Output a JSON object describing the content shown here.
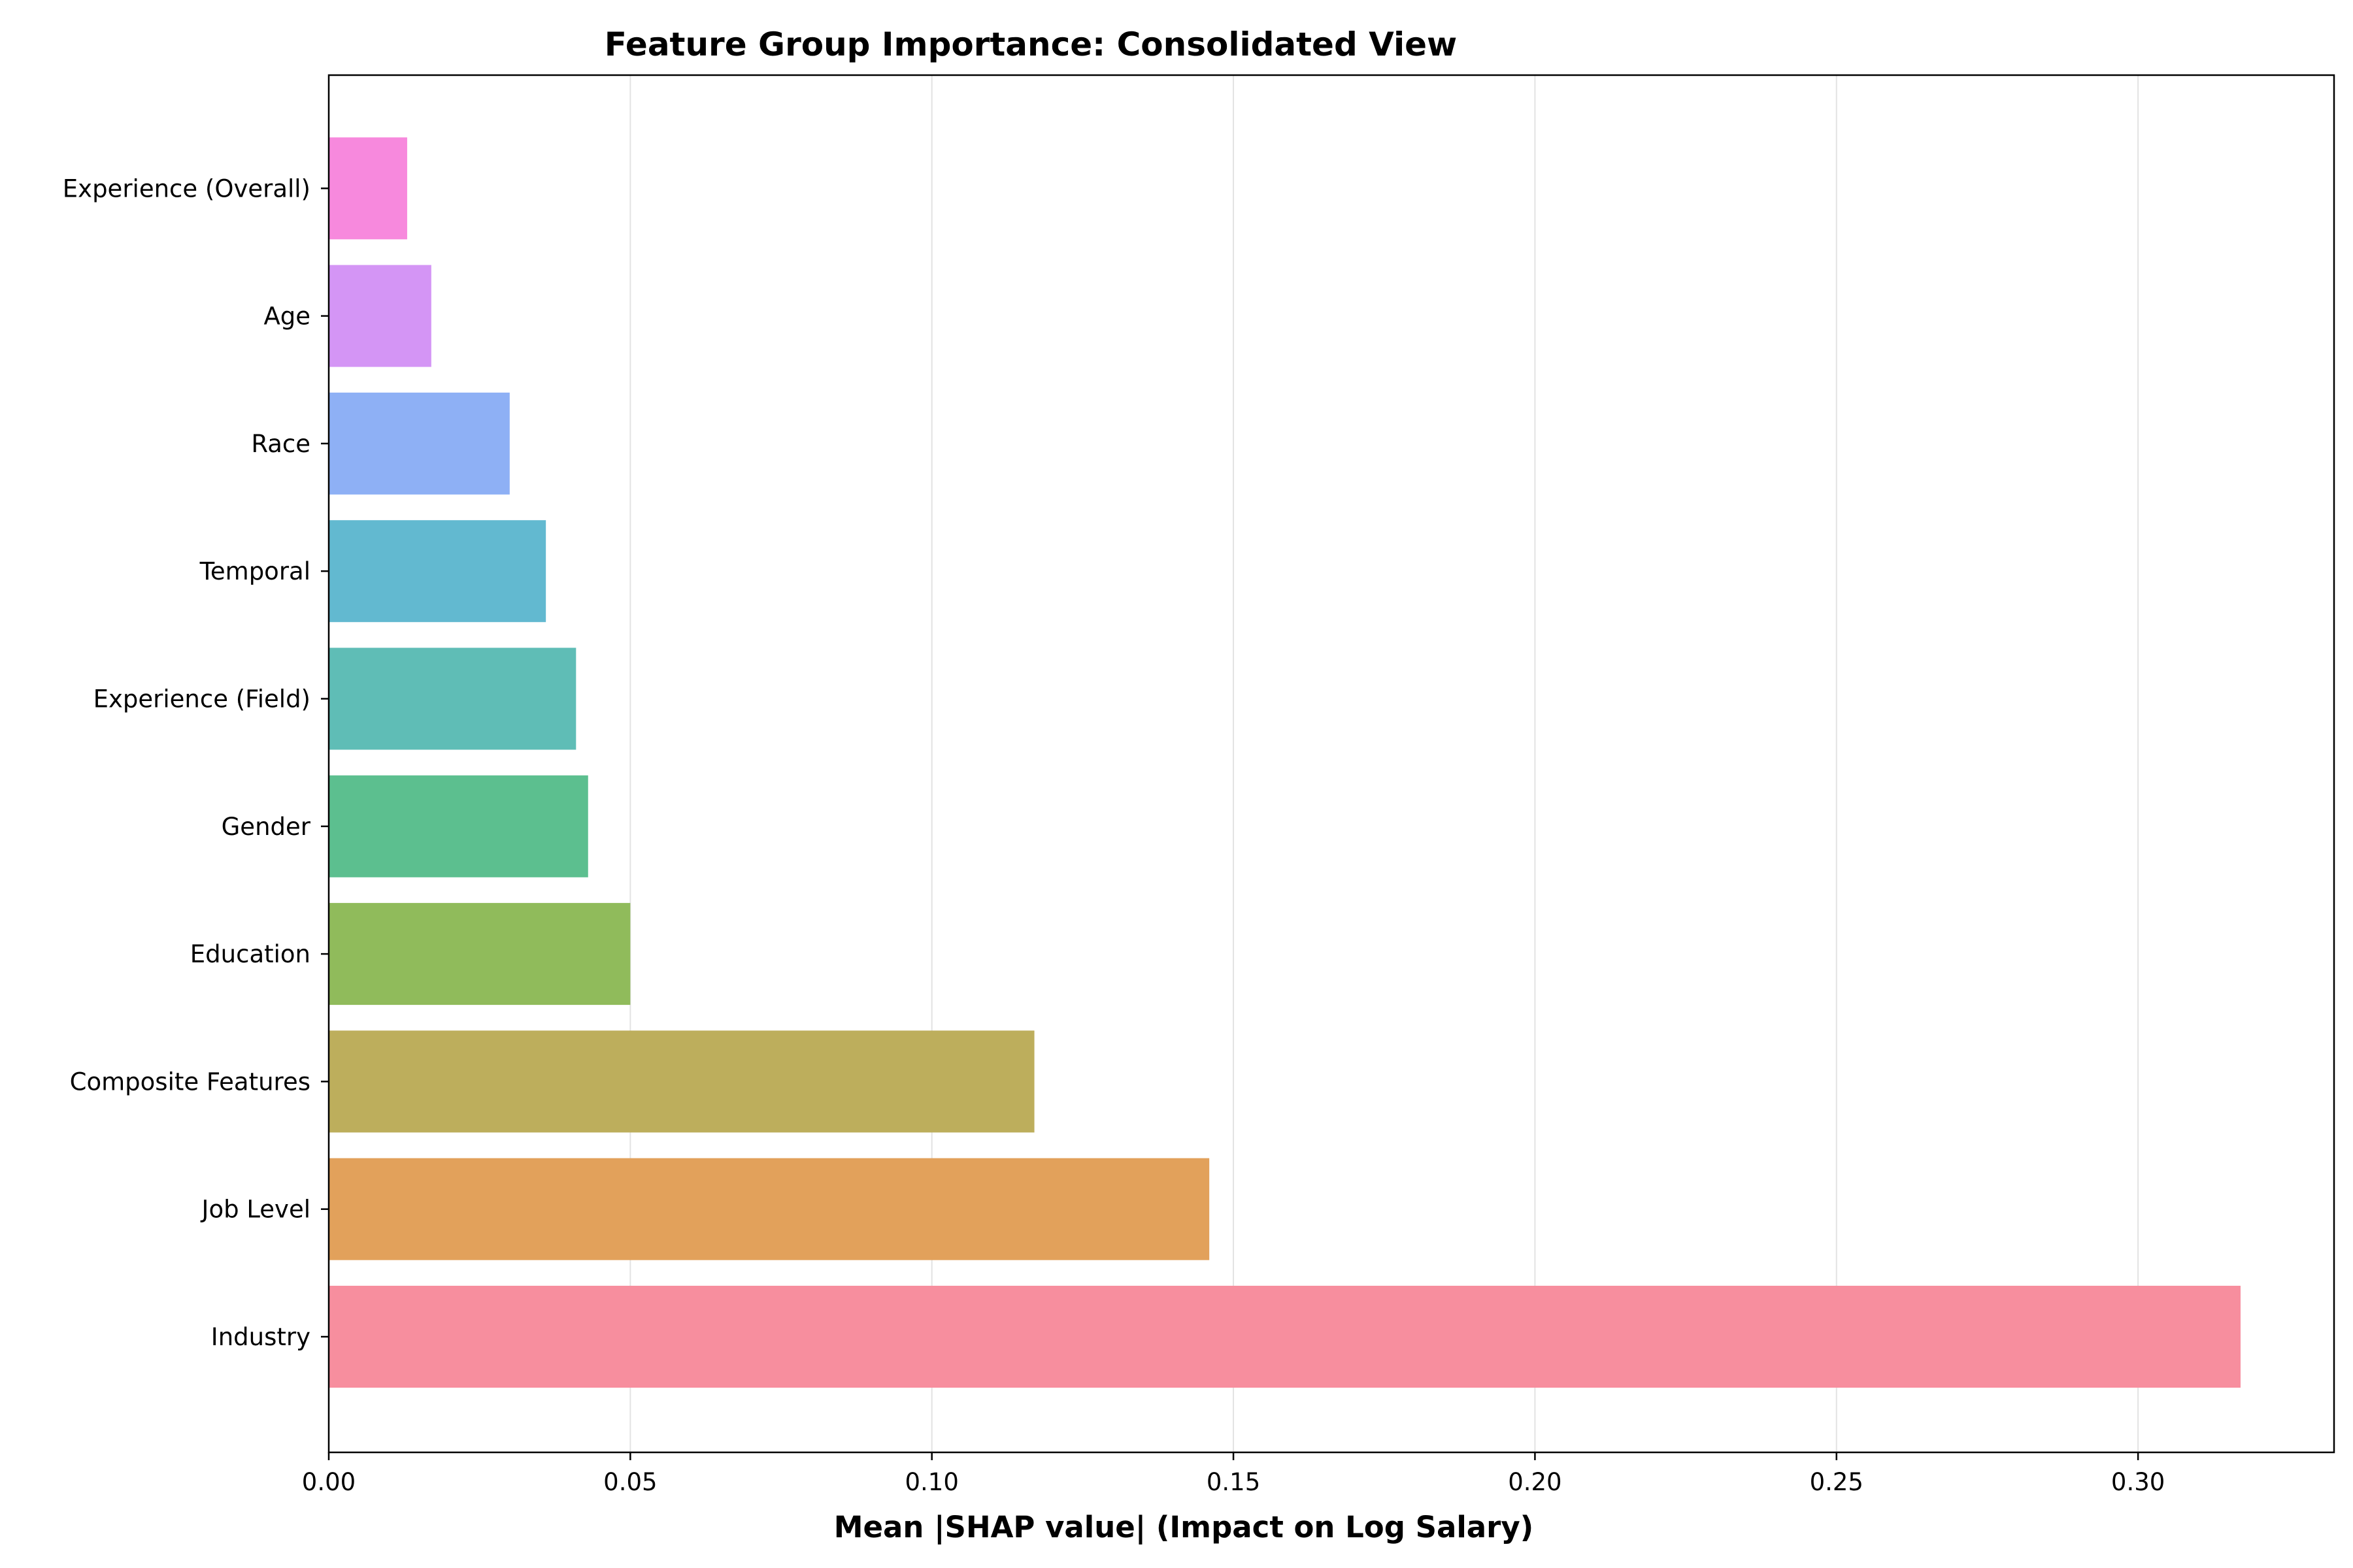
{
  "chart_data": {
    "type": "bar",
    "orientation": "horizontal",
    "title": "Feature Group Importance: Consolidated View",
    "xlabel": "Mean |SHAP value| (Impact on Log Salary)",
    "ylabel": "",
    "xlim": [
      0,
      0.3325
    ],
    "xticks": [
      "0.00",
      "0.05",
      "0.10",
      "0.15",
      "0.20",
      "0.25",
      "0.30"
    ],
    "xtick_values": [
      0,
      0.05,
      0.1,
      0.15,
      0.2,
      0.25,
      0.3
    ],
    "grid": "vertical",
    "legend": "none",
    "categories": [
      "Industry",
      "Job Level",
      "Composite Features",
      "Education",
      "Gender",
      "Experience (Field)",
      "Temporal",
      "Race",
      "Age",
      "Experience (Overall)"
    ],
    "values": [
      0.317,
      0.146,
      0.117,
      0.05,
      0.043,
      0.041,
      0.036,
      0.03,
      0.017,
      0.013
    ],
    "colors": [
      "#f78e9e",
      "#e2a15b",
      "#bdae5c",
      "#90bb5b",
      "#5cbf8f",
      "#5fbdb6",
      "#62b9d0",
      "#8eb0f5",
      "#d495f5",
      "#f789dd"
    ]
  }
}
